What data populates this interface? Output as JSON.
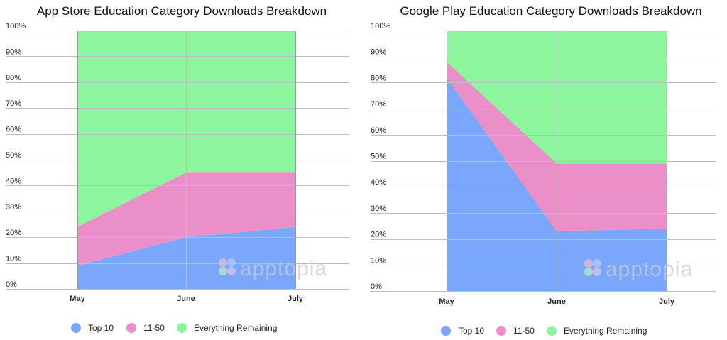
{
  "chart_data": [
    {
      "type": "area",
      "stacked": true,
      "title": "App Store Education Category Downloads Breakdown",
      "categories": [
        "May",
        "June",
        "July"
      ],
      "y_tick_labels": [
        "0%",
        "10%",
        "20%",
        "30%",
        "40%",
        "50%",
        "60%",
        "70%",
        "80%",
        "90%",
        "100%"
      ],
      "ylim": [
        0,
        100
      ],
      "grid": true,
      "legend_position": "bottom",
      "series": [
        {
          "name": "Top 10",
          "values": [
            9,
            20,
            24
          ],
          "color": "#7aa6fb"
        },
        {
          "name": "11-50",
          "values": [
            15,
            25,
            21
          ],
          "color": "#ea8fc7"
        },
        {
          "name": "Everything Remaining",
          "values": [
            76,
            55,
            55
          ],
          "color": "#8cf59e"
        }
      ],
      "watermark": "apptopia"
    },
    {
      "type": "area",
      "stacked": true,
      "title": "Google Play Education Category Downloads Breakdown",
      "categories": [
        "May",
        "June",
        "July"
      ],
      "y_tick_labels": [
        "0%",
        "10%",
        "20%",
        "30%",
        "40%",
        "50%",
        "60%",
        "70%",
        "80%",
        "90%",
        "100%"
      ],
      "ylim": [
        0,
        100
      ],
      "grid": true,
      "legend_position": "bottom",
      "series": [
        {
          "name": "Top 10",
          "values": [
            82,
            23,
            24
          ],
          "color": "#7aa6fb"
        },
        {
          "name": "11-50",
          "values": [
            6,
            26,
            25
          ],
          "color": "#ea8fc7"
        },
        {
          "name": "Everything Remaining",
          "values": [
            12,
            51,
            51
          ],
          "color": "#8cf59e"
        }
      ],
      "watermark": "apptopia"
    }
  ]
}
